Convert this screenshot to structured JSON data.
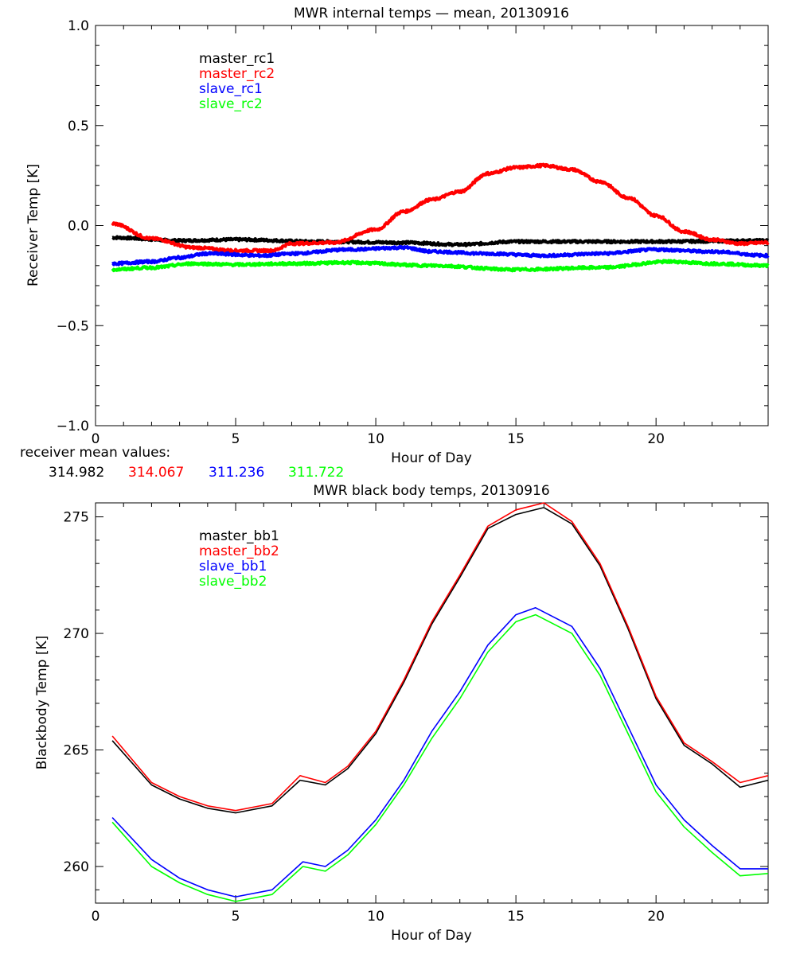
{
  "chart_data": [
    {
      "type": "line",
      "title": "MWR internal temps — mean, 20130916",
      "xlabel": "Hour of Day",
      "ylabel": "Receiver Temp [K]",
      "xlim": [
        0,
        24
      ],
      "ylim": [
        -1.0,
        1.0
      ],
      "xticks": [
        0,
        5,
        10,
        15,
        20
      ],
      "yticks": [
        -1.0,
        -0.5,
        0.0,
        0.5,
        1.0
      ],
      "ytick_labels": [
        "−1.0",
        "−0.5",
        "0.0",
        "0.5",
        "1.0"
      ],
      "grid": false,
      "legend_position": "top-left",
      "series": [
        {
          "name": "master_rc1",
          "color": "#000000",
          "x": [
            0.6,
            3,
            5,
            8,
            11,
            13,
            15,
            20,
            24
          ],
          "y": [
            -0.06,
            -0.075,
            -0.07,
            -0.08,
            -0.085,
            -0.095,
            -0.08,
            -0.08,
            -0.075
          ]
        },
        {
          "name": "master_rc2",
          "color": "#ff0000",
          "x": [
            0.6,
            2,
            3.5,
            5,
            6.3,
            7,
            8.5,
            10,
            11,
            12,
            13,
            14,
            15,
            16,
            17,
            18,
            19,
            20,
            21,
            22,
            23,
            24
          ],
          "y": [
            0.01,
            -0.065,
            -0.11,
            -0.125,
            -0.125,
            -0.09,
            -0.085,
            -0.02,
            0.07,
            0.13,
            0.17,
            0.26,
            0.29,
            0.3,
            0.28,
            0.22,
            0.14,
            0.05,
            -0.03,
            -0.07,
            -0.09,
            -0.085
          ]
        },
        {
          "name": "slave_rc1",
          "color": "#0000ff",
          "x": [
            0.6,
            2,
            3,
            4,
            6,
            7,
            9,
            11,
            12,
            14,
            16,
            18,
            20,
            22,
            24
          ],
          "y": [
            -0.19,
            -0.18,
            -0.16,
            -0.14,
            -0.15,
            -0.14,
            -0.12,
            -0.11,
            -0.13,
            -0.14,
            -0.15,
            -0.14,
            -0.12,
            -0.13,
            -0.15
          ]
        },
        {
          "name": "slave_rc2",
          "color": "#00ff00",
          "x": [
            0.6,
            2,
            3.5,
            5,
            7,
            9,
            12,
            15,
            18,
            20.5,
            22,
            24
          ],
          "y": [
            -0.22,
            -0.21,
            -0.19,
            -0.195,
            -0.19,
            -0.185,
            -0.2,
            -0.22,
            -0.21,
            -0.18,
            -0.19,
            -0.2
          ]
        }
      ],
      "annotation": {
        "label": "receiver mean values:",
        "values": [
          "314.982",
          "314.067",
          "311.236",
          "311.722"
        ]
      }
    },
    {
      "type": "line",
      "title": "MWR black body temps, 20130916",
      "xlabel": "Hour of Day",
      "ylabel": "Blackbody Temp [K]",
      "xlim": [
        0,
        24
      ],
      "ylim": [
        258.43,
        275.6
      ],
      "xticks": [
        0,
        5,
        10,
        15,
        20
      ],
      "yticks": [
        260,
        265,
        270,
        275
      ],
      "grid": false,
      "legend_position": "top-left",
      "series": [
        {
          "name": "master_bb1",
          "color": "#000000",
          "x": [
            0.6,
            2,
            3,
            4,
            5,
            6.3,
            7.3,
            8.2,
            9,
            10,
            11,
            12,
            13,
            14,
            15,
            16,
            17,
            18,
            19,
            20,
            21,
            22,
            23,
            24
          ],
          "y": [
            265.4,
            263.5,
            262.9,
            262.5,
            262.3,
            262.6,
            263.7,
            263.5,
            264.2,
            265.7,
            267.9,
            270.4,
            272.4,
            274.5,
            275.1,
            275.4,
            274.7,
            272.9,
            270.2,
            267.2,
            265.2,
            264.4,
            263.4,
            263.7
          ]
        },
        {
          "name": "master_bb2",
          "color": "#ff0000",
          "x": [
            0.6,
            2,
            3,
            4,
            5,
            6.3,
            7.3,
            8.2,
            9,
            10,
            11,
            12,
            13,
            14,
            15,
            16,
            17,
            18,
            19,
            20,
            21,
            22,
            23,
            24
          ],
          "y": [
            265.6,
            263.6,
            263.0,
            262.6,
            262.4,
            262.7,
            263.9,
            263.6,
            264.3,
            265.8,
            268.0,
            270.5,
            272.5,
            274.6,
            275.3,
            275.6,
            274.8,
            273.0,
            270.3,
            267.3,
            265.3,
            264.5,
            263.6,
            263.9
          ]
        },
        {
          "name": "slave_bb1",
          "color": "#0000ff",
          "x": [
            0.6,
            2,
            3,
            4,
            5,
            6.3,
            7.4,
            8.2,
            9,
            10,
            11,
            12,
            13,
            14,
            15,
            15.7,
            17,
            18,
            19,
            20,
            21,
            22,
            23,
            24
          ],
          "y": [
            262.1,
            260.3,
            259.5,
            259.0,
            258.7,
            259.0,
            260.2,
            260.0,
            260.7,
            262.0,
            263.7,
            265.8,
            267.5,
            269.5,
            270.8,
            271.1,
            270.3,
            268.5,
            266.0,
            263.5,
            262.0,
            260.9,
            259.9,
            259.9
          ]
        },
        {
          "name": "slave_bb2",
          "color": "#00ff00",
          "x": [
            0.6,
            2,
            3,
            4,
            5,
            6.3,
            7.4,
            8.2,
            9,
            10,
            11,
            12,
            13,
            14,
            15,
            15.7,
            17,
            18,
            19,
            20,
            21,
            22,
            23,
            24
          ],
          "y": [
            261.9,
            260.0,
            259.3,
            258.8,
            258.5,
            258.8,
            260.0,
            259.8,
            260.5,
            261.8,
            263.5,
            265.5,
            267.2,
            269.2,
            270.5,
            270.8,
            270.0,
            268.2,
            265.7,
            263.2,
            261.7,
            260.6,
            259.6,
            259.7
          ]
        }
      ]
    }
  ]
}
